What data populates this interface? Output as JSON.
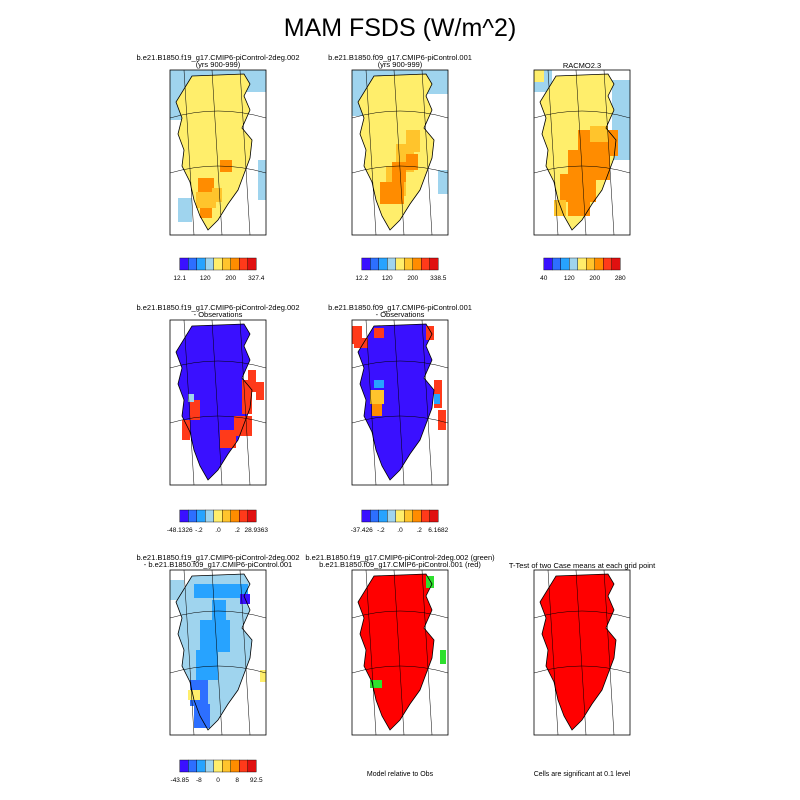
{
  "title": "MAM FSDS (W/m^2)",
  "colors": {
    "scale": [
      "#3a10ff",
      "#2d6fff",
      "#27a3ff",
      "#9fd4ee",
      "#ffee6b",
      "#ffc42c",
      "#ff8c00",
      "#ff3a1a",
      "#e01010"
    ],
    "significant_red": "#ff0000",
    "green": "#2ee02e",
    "coastline": "#000000"
  },
  "chart_data": [
    {
      "type": "heatmap",
      "panel": "case1-climatology",
      "title_lines": [
        "b.e21.B1850.f19_g17.CMIP6-piControl-2deg.002",
        "(yrs 900-999)"
      ],
      "colorbar_labels": [
        "12.1",
        "120",
        "200",
        "327.4"
      ],
      "range": [
        12.1,
        327.4
      ]
    },
    {
      "type": "heatmap",
      "panel": "case2-climatology",
      "title_lines": [
        "b.e21.B1850.f09_g17.CMIP6-piControl.001",
        "(yrs 900-999)"
      ],
      "colorbar_labels": [
        "12.2",
        "120",
        "200",
        "338.5"
      ],
      "range": [
        12.2,
        338.5
      ]
    },
    {
      "type": "heatmap",
      "panel": "observations-climatology",
      "title_lines": [
        "RACMO2.3"
      ],
      "colorbar_labels": [
        "40",
        "120",
        "200",
        "280"
      ]
    },
    {
      "type": "heatmap",
      "panel": "case1-minus-obs",
      "title_lines": [
        "b.e21.B1850.f19_g17.CMIP6-piControl-2deg.002",
        "- Observations"
      ],
      "colorbar_labels": [
        "-48.1326",
        "-.2",
        ".0",
        ".2",
        "28.9363"
      ],
      "range": [
        -48.1326,
        28.9363
      ]
    },
    {
      "type": "heatmap",
      "panel": "case2-minus-obs",
      "title_lines": [
        "b.e21.B1850.f09_g17.CMIP6-piControl.001",
        "- Observations"
      ],
      "colorbar_labels": [
        "-37.426",
        "-.2",
        ".0",
        ".2",
        "6.1682"
      ],
      "range": [
        -37.426,
        6.1682
      ]
    },
    {
      "type": "heatmap",
      "panel": "case1-minus-case2",
      "title_lines": [
        "b.e21.B1850.f19_g17.CMIP6-piControl-2deg.002",
        "- b.e21.B1850.f09_g17.CMIP6-piControl.001"
      ],
      "colorbar_labels": [
        "-43.85",
        "-8",
        "0",
        "8",
        "92.5"
      ],
      "range": [
        -43.85,
        92.5
      ]
    },
    {
      "type": "heatmap",
      "panel": "closer-to-obs",
      "title_lines": [
        "b.e21.B1850.f19_g17.CMIP6-piControl-2deg.002 (green)",
        "b.e21.B1850.f09_g17.CMIP6-piControl.001 (red)"
      ],
      "footer": "Model relative to Obs"
    },
    {
      "type": "heatmap",
      "panel": "t-test",
      "title_lines": [
        "T-Test of two Case means at each grid point"
      ],
      "footer": "Cells are significant at 0.1 level"
    }
  ]
}
